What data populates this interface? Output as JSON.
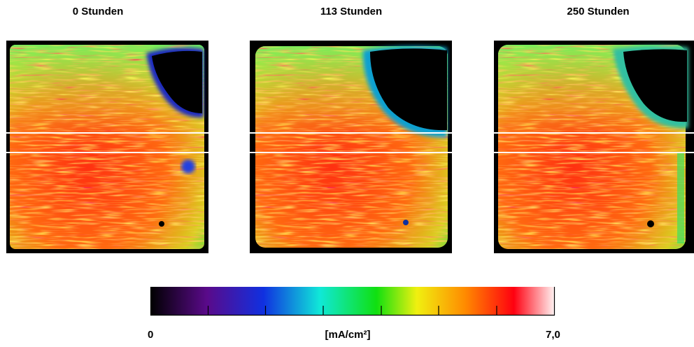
{
  "panels": [
    {
      "title": "0 Stunden"
    },
    {
      "title": "113 Stunden"
    },
    {
      "title": "250 Stunden"
    }
  ],
  "colorbar": {
    "min_label": "0",
    "unit_label": "[mA/cm²]",
    "max_label": "7,0"
  }
}
